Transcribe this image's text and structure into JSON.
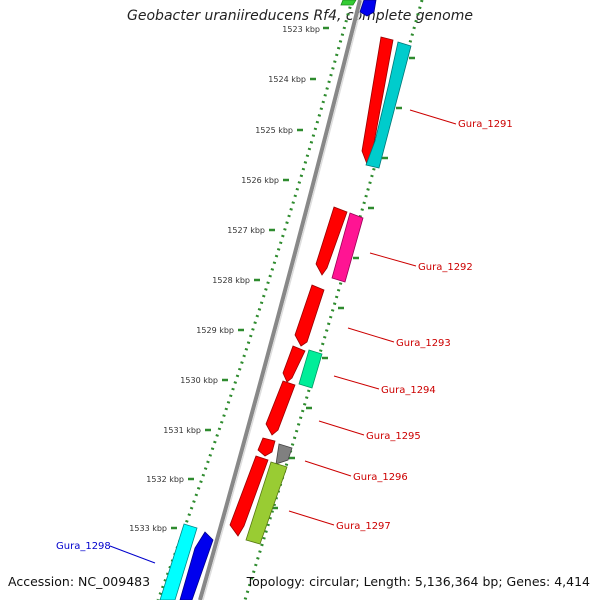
{
  "title": "Geobacter uraniireducens Rf4, complete genome",
  "footer": {
    "accession": "Accession: NC_009483",
    "topology": "Topology: circular; Length: 5,136,364 bp; Genes: 4,414"
  },
  "ticks": [
    "1523 kbp",
    "1524 kbp",
    "1525 kbp",
    "1526 kbp",
    "1527 kbp",
    "1528 kbp",
    "1529 kbp",
    "1530 kbp",
    "1531 kbp",
    "1532 kbp",
    "1533 kbp"
  ],
  "genes": [
    {
      "name": "Gura_1291",
      "color": "#cc0000"
    },
    {
      "name": "Gura_1292",
      "color": "#cc0000"
    },
    {
      "name": "Gura_1293",
      "color": "#cc0000"
    },
    {
      "name": "Gura_1294",
      "color": "#cc0000"
    },
    {
      "name": "Gura_1295",
      "color": "#cc0000"
    },
    {
      "name": "Gura_1296",
      "color": "#cc0000"
    },
    {
      "name": "Gura_1297",
      "color": "#cc0000"
    },
    {
      "name": "Gura_1298",
      "color": "#0000cc"
    }
  ],
  "colors": {
    "red": "#ff0000",
    "cyan": "#00cccc",
    "magenta": "#ff1493",
    "green": "#00ee99",
    "gray": "#808080",
    "lime": "#99cc33",
    "blue": "#0000ee",
    "aqua": "#00ffff",
    "dotted": "#2e8b2e",
    "backbone": "#888888"
  }
}
